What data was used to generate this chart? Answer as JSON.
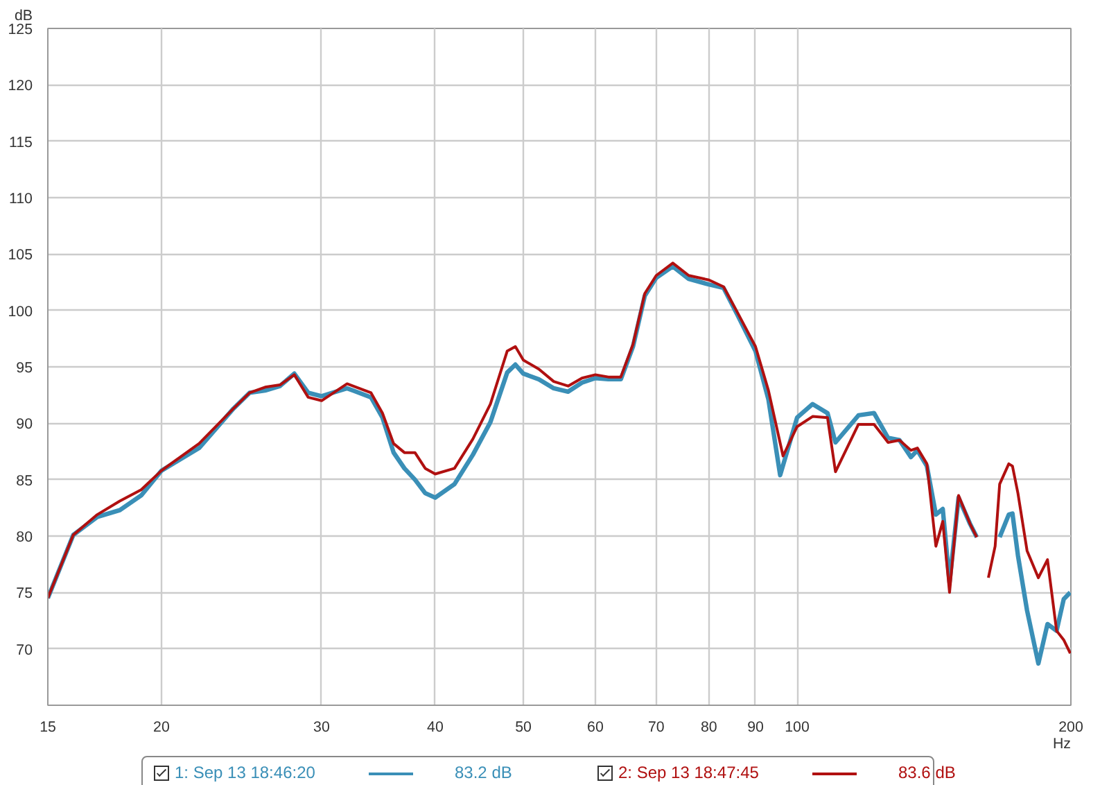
{
  "chart_data": {
    "type": "line",
    "xlabel": "Hz",
    "ylabel": "dB",
    "log": "x",
    "grid": true,
    "legend": "bottom",
    "line_style": "solid",
    "marker": "none",
    "xlim": [
      15,
      200
    ],
    "xticks": [
      15,
      20,
      30,
      40,
      50,
      60,
      70,
      80,
      90,
      100,
      200
    ],
    "ylim": [
      65,
      125
    ],
    "yticks": [
      70,
      75,
      80,
      85,
      90,
      95,
      100,
      105,
      110,
      115,
      120,
      125
    ],
    "annotations": [
      "83.2 dB",
      "83.6 dB"
    ],
    "series": [
      {
        "name": "1: Sep 13 18:46:20",
        "color": "#3a8fb7",
        "x": [
          15,
          16,
          17,
          18,
          19,
          20,
          22,
          24,
          25,
          26,
          27,
          28,
          29,
          30,
          32,
          34,
          35,
          36,
          37,
          38,
          39,
          40,
          42,
          44,
          46,
          48,
          49,
          50,
          52,
          54,
          56,
          58,
          60,
          62,
          64,
          66,
          68,
          70,
          73,
          76,
          80,
          83,
          86,
          90,
          93,
          95.8,
          100,
          104,
          108,
          110.2,
          116.8,
          121.5,
          125.9,
          129.6,
          133.4,
          135.6,
          138.9,
          142.1,
          144.6,
          147.1,
          150.5,
          154.9,
          157.6,
          159.8,
          162.3,
          164.5,
          167,
          170.9,
          172.5,
          174.9,
          179,
          184.2,
          188.5,
          192.9,
          196.4,
          199.7
        ],
        "values": [
          74.5,
          80.1,
          81.7,
          82.3,
          83.6,
          85.8,
          87.8,
          91.3,
          92.7,
          92.9,
          93.3,
          94.4,
          92.7,
          92.4,
          93.1,
          92.3,
          90.5,
          87.4,
          86.0,
          85.0,
          83.8,
          83.4,
          84.6,
          87.2,
          90.1,
          94.5,
          95.2,
          94.4,
          93.9,
          93.1,
          92.8,
          93.6,
          94.0,
          93.9,
          93.9,
          96.8,
          101.3,
          102.9,
          103.9,
          102.8,
          102.3,
          102.0,
          99.6,
          96.4,
          92.1,
          85.4,
          90.5,
          91.7,
          90.9,
          88.3,
          90.7,
          90.9,
          88.7,
          88.5,
          87.0,
          87.6,
          86.2,
          81.9,
          82.4,
          75.9,
          83.4,
          81.1,
          79.9,
          null,
          null,
          null,
          79.9,
          81.9,
          82.0,
          78.3,
          73.4,
          68.7,
          72.2,
          71.6,
          74.4,
          75.0
        ]
      },
      {
        "name": "2: Sep 13 18:47:45",
        "color": "#b01010",
        "x": [
          15,
          16,
          17,
          18,
          19,
          20,
          22,
          24,
          25,
          26,
          27,
          28,
          29,
          30,
          32,
          34,
          35,
          36,
          37,
          38,
          39,
          40,
          42,
          44,
          46,
          48,
          49,
          50,
          52,
          54,
          56,
          58,
          60,
          62,
          64,
          66,
          68,
          70,
          73,
          76,
          80,
          83,
          86,
          90,
          93,
          96.5,
          100,
          104,
          108,
          110.2,
          116.8,
          121.5,
          125.9,
          129.6,
          133.4,
          135.6,
          138.9,
          142.1,
          144.6,
          147.1,
          150.5,
          154.9,
          157.6,
          159.8,
          162.3,
          165.1,
          167,
          170.9,
          172.5,
          174.9,
          179,
          184.2,
          188.5,
          192.9,
          196.4,
          199.7
        ],
        "values": [
          74.5,
          80.1,
          81.9,
          83.1,
          84.1,
          85.8,
          88.2,
          91.3,
          92.7,
          93.2,
          93.4,
          94.3,
          92.3,
          92.0,
          93.5,
          92.7,
          90.9,
          88.2,
          87.4,
          87.4,
          86.0,
          85.5,
          86.0,
          88.6,
          91.7,
          96.4,
          96.8,
          95.6,
          94.8,
          93.7,
          93.3,
          94.0,
          94.3,
          94.1,
          94.1,
          97.0,
          101.5,
          103.1,
          104.2,
          103.1,
          102.7,
          102.1,
          99.8,
          96.8,
          92.9,
          87.1,
          89.7,
          90.6,
          90.5,
          85.7,
          89.9,
          89.9,
          88.3,
          88.5,
          87.6,
          87.8,
          86.4,
          79.1,
          81.3,
          75.0,
          83.6,
          81.1,
          79.9,
          null,
          76.3,
          79.1,
          84.6,
          86.4,
          86.2,
          83.8,
          78.7,
          76.3,
          77.9,
          71.6,
          70.8,
          69.6
        ]
      }
    ]
  }
}
